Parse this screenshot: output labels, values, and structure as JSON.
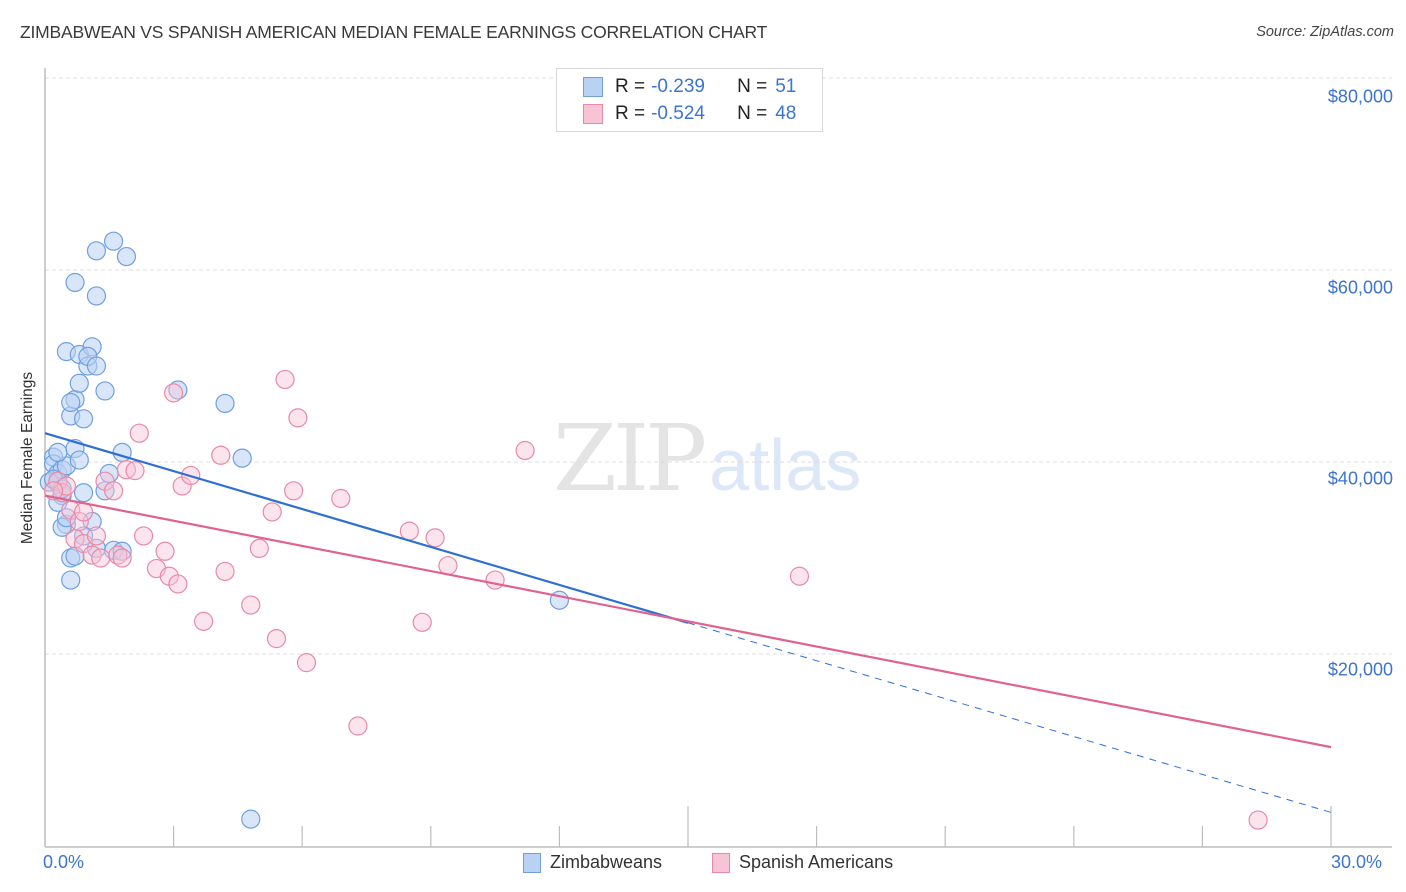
{
  "header": {
    "title": "ZIMBABWEAN VS SPANISH AMERICAN MEDIAN FEMALE EARNINGS CORRELATION CHART",
    "source": "Source: ZipAtlas.com"
  },
  "legend_top": {
    "rows": [
      {
        "series": "Zimbabweans",
        "r_label": "R =",
        "r_value": "-0.239",
        "n_label": "N =",
        "n_value": "51",
        "color": "#6f9fe0",
        "fill": "#b9d2f4"
      },
      {
        "series": "Spanish Americans",
        "r_label": "R =",
        "r_value": "-0.524",
        "n_label": "N =",
        "n_value": "48",
        "color": "#e889a8",
        "fill": "#f8c4d5"
      }
    ]
  },
  "legend_bottom": {
    "items": [
      {
        "label": "Zimbabweans",
        "color": "#6f9fe0",
        "fill": "#b9d2f4"
      },
      {
        "label": "Spanish Americans",
        "color": "#e889a8",
        "fill": "#f8c4d5"
      }
    ]
  },
  "axes": {
    "y_label": "Median Female Earnings",
    "y_ticks": [
      "$80,000",
      "$60,000",
      "$40,000",
      "$20,000"
    ],
    "x_ticks": [
      "0.0%",
      "30.0%"
    ]
  },
  "watermark": {
    "zip": "ZIP",
    "atlas": "atlas"
  },
  "colors": {
    "blue_line": "#2f6fd4",
    "pink_line": "#e0638f",
    "tick_text": "#3c74d2",
    "grid": "#dddddd"
  },
  "chart_data": {
    "type": "scatter",
    "title": "ZIMBABWEAN VS SPANISH AMERICAN MEDIAN FEMALE EARNINGS CORRELATION CHART",
    "xlabel": "",
    "ylabel": "Median Female Earnings",
    "xlim": [
      0,
      30
    ],
    "ylim": [
      0,
      82000
    ],
    "x_unit": "%",
    "grid": true,
    "legend_position": "top-center and bottom",
    "series": [
      {
        "name": "Zimbabweans",
        "r": -0.239,
        "n": 51,
        "trend": {
          "x0": 0,
          "y0": 43000,
          "x1": 30,
          "y1": 3500,
          "solid_until_x": 15
        },
        "points": [
          [
            0.2,
            40500
          ],
          [
            0.2,
            39800
          ],
          [
            0.3,
            38800
          ],
          [
            0.3,
            37800
          ],
          [
            0.4,
            39200
          ],
          [
            0.5,
            39600
          ],
          [
            0.3,
            41000
          ],
          [
            0.4,
            36500
          ],
          [
            0.5,
            33500
          ],
          [
            0.6,
            30000
          ],
          [
            0.3,
            35800
          ],
          [
            0.4,
            33200
          ],
          [
            0.7,
            41400
          ],
          [
            0.8,
            40200
          ],
          [
            0.9,
            36800
          ],
          [
            0.6,
            44800
          ],
          [
            0.7,
            46500
          ],
          [
            0.6,
            46200
          ],
          [
            0.9,
            44500
          ],
          [
            0.8,
            48200
          ],
          [
            0.5,
            51500
          ],
          [
            0.8,
            51200
          ],
          [
            1.0,
            50000
          ],
          [
            1.1,
            52000
          ],
          [
            1.0,
            51000
          ],
          [
            1.2,
            50000
          ],
          [
            1.4,
            47400
          ],
          [
            1.1,
            33800
          ],
          [
            1.2,
            31000
          ],
          [
            1.6,
            30800
          ],
          [
            1.8,
            30700
          ],
          [
            0.6,
            27700
          ],
          [
            0.7,
            30200
          ],
          [
            1.4,
            37000
          ],
          [
            1.5,
            38800
          ],
          [
            1.8,
            41000
          ],
          [
            1.2,
            62000
          ],
          [
            1.6,
            63000
          ],
          [
            1.9,
            61400
          ],
          [
            0.7,
            58700
          ],
          [
            1.2,
            57300
          ],
          [
            3.1,
            47500
          ],
          [
            4.2,
            46100
          ],
          [
            4.6,
            40400
          ],
          [
            12.0,
            25600
          ],
          [
            4.8,
            2800
          ],
          [
            0.1,
            37900
          ],
          [
            0.2,
            38200
          ],
          [
            0.4,
            37200
          ],
          [
            0.5,
            34200
          ],
          [
            0.9,
            32300
          ]
        ]
      },
      {
        "name": "Spanish Americans",
        "r": -0.524,
        "n": 48,
        "trend": {
          "x0": 0,
          "y0": 36500,
          "x1": 30,
          "y1": 10300
        },
        "points": [
          [
            0.3,
            38000
          ],
          [
            0.4,
            36800
          ],
          [
            0.5,
            37500
          ],
          [
            0.6,
            35000
          ],
          [
            0.7,
            32000
          ],
          [
            0.8,
            33800
          ],
          [
            0.9,
            31500
          ],
          [
            1.1,
            30300
          ],
          [
            1.2,
            32300
          ],
          [
            1.3,
            30000
          ],
          [
            1.4,
            38000
          ],
          [
            1.6,
            37000
          ],
          [
            1.7,
            30300
          ],
          [
            1.8,
            30000
          ],
          [
            1.9,
            39200
          ],
          [
            2.1,
            39100
          ],
          [
            2.2,
            43000
          ],
          [
            2.3,
            32300
          ],
          [
            2.6,
            28900
          ],
          [
            2.8,
            30700
          ],
          [
            2.9,
            28100
          ],
          [
            3.1,
            27300
          ],
          [
            3.0,
            47200
          ],
          [
            3.2,
            37500
          ],
          [
            3.4,
            38600
          ],
          [
            3.7,
            23400
          ],
          [
            4.1,
            40700
          ],
          [
            4.2,
            28600
          ],
          [
            4.8,
            25100
          ],
          [
            5.0,
            31000
          ],
          [
            5.3,
            34800
          ],
          [
            5.4,
            21600
          ],
          [
            5.6,
            48600
          ],
          [
            5.8,
            37000
          ],
          [
            5.9,
            44600
          ],
          [
            6.1,
            19100
          ],
          [
            6.9,
            36200
          ],
          [
            7.3,
            12500
          ],
          [
            8.5,
            32800
          ],
          [
            8.8,
            23300
          ],
          [
            9.1,
            32100
          ],
          [
            9.4,
            29200
          ],
          [
            10.5,
            27700
          ],
          [
            11.2,
            41200
          ],
          [
            17.6,
            28100
          ],
          [
            28.3,
            2700
          ],
          [
            0.9,
            34800
          ],
          [
            0.2,
            37000
          ]
        ]
      }
    ]
  }
}
